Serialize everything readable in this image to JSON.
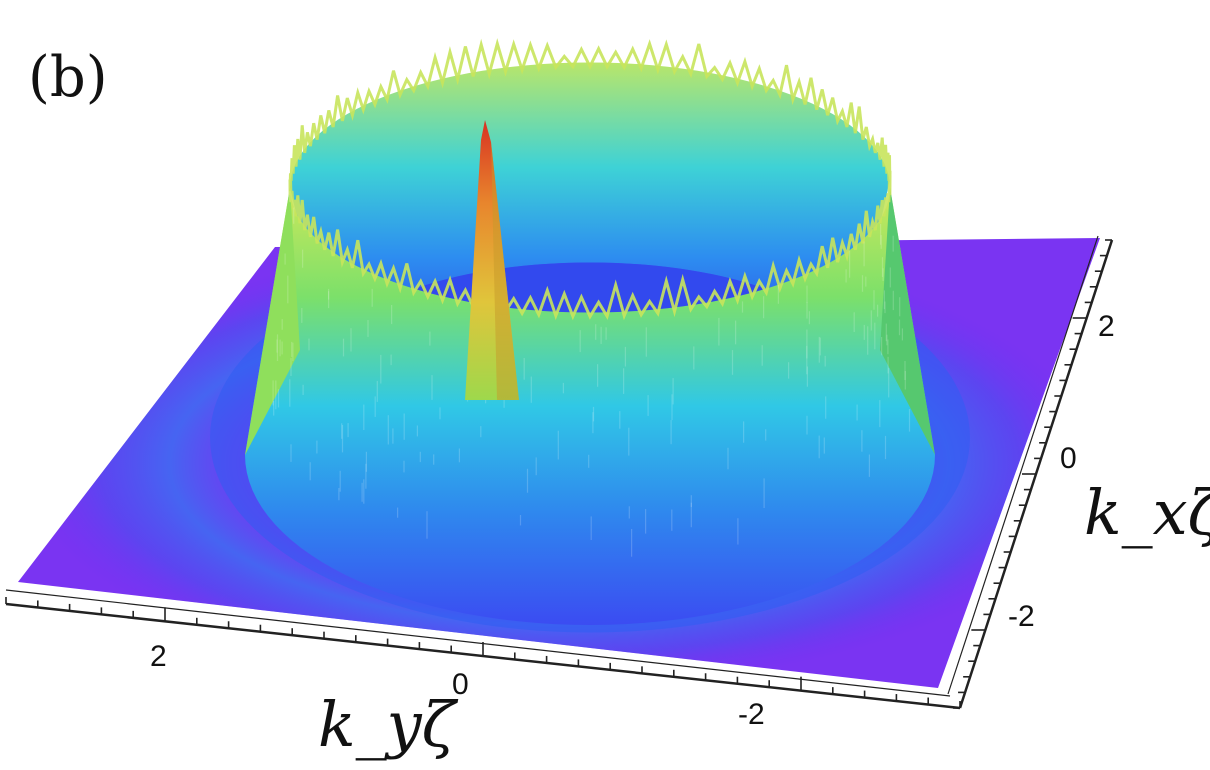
{
  "chart_data": {
    "type": "surface3d",
    "panel_label": "(b)",
    "xlabel": "k_yζ",
    "ylabel": "k_xζ",
    "ky_ticks": [
      2,
      0,
      -2
    ],
    "kx_ticks": [
      2,
      0,
      -2
    ],
    "ky_tick_labels": [
      "2",
      "0",
      "-2"
    ],
    "kx_tick_labels": [
      "2",
      "0",
      "-2"
    ],
    "ky_range": [
      3,
      -3
    ],
    "kx_range": [
      -3,
      3
    ],
    "ring_radius": 1.7,
    "ring_height": 0.55,
    "peak": {
      "ky": 0.5,
      "kx": 0.9,
      "height": 1.0
    },
    "colormap": [
      "#6a2cf0",
      "#3a5af6",
      "#2fb6ec",
      "#8fe05a",
      "#e8e04a",
      "#e34a2c"
    ],
    "background_surface_color": "#7a34f2"
  }
}
